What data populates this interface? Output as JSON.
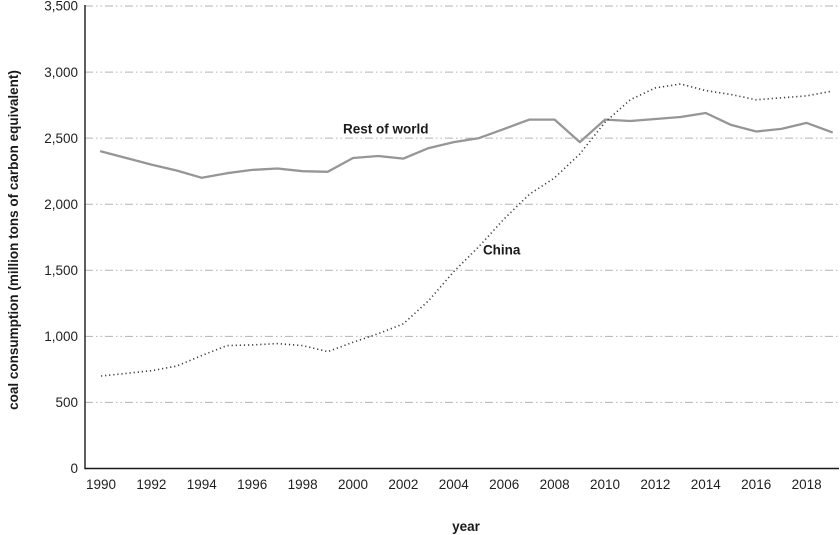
{
  "chart_data": {
    "type": "line",
    "title": "",
    "xlabel": "year",
    "ylabel": "coal consumption (million tons of carbon equivalent)",
    "x": [
      1990,
      1991,
      1992,
      1993,
      1994,
      1995,
      1996,
      1997,
      1998,
      1999,
      2000,
      2001,
      2002,
      2003,
      2004,
      2005,
      2006,
      2007,
      2008,
      2009,
      2010,
      2011,
      2012,
      2013,
      2014,
      2015,
      2016,
      2017,
      2018,
      2019
    ],
    "series": [
      {
        "name": "Rest of world",
        "line_style": "solid",
        "color": "#969696",
        "values": [
          2400,
          2350,
          2300,
          2255,
          2200,
          2235,
          2260,
          2270,
          2250,
          2245,
          2350,
          2365,
          2345,
          2425,
          2470,
          2500,
          2570,
          2640,
          2640,
          2470,
          2640,
          2630,
          2645,
          2660,
          2690,
          2600,
          2550,
          2570,
          2615,
          2545
        ]
      },
      {
        "name": "China",
        "line_style": "dotted",
        "color": "#3c3c3c",
        "values": [
          700,
          720,
          740,
          775,
          855,
          930,
          935,
          945,
          930,
          885,
          955,
          1020,
          1095,
          1270,
          1490,
          1680,
          1890,
          2075,
          2200,
          2380,
          2620,
          2790,
          2880,
          2910,
          2860,
          2830,
          2790,
          2805,
          2820,
          2855
        ]
      }
    ],
    "ylim": [
      0,
      3500
    ],
    "yticks": [
      0,
      500,
      1000,
      1500,
      2000,
      2500,
      3000,
      3500
    ],
    "ytick_labels": [
      "0",
      "500",
      "1,000",
      "1,500",
      "2,000",
      "2,500",
      "3,000",
      "3,500"
    ],
    "xticks": [
      1990,
      1992,
      1994,
      1996,
      1998,
      2000,
      2002,
      2004,
      2006,
      2008,
      2010,
      2012,
      2014,
      2016,
      2018
    ],
    "xtick_labels": [
      "1990",
      "1992",
      "1994",
      "1996",
      "1998",
      "2000",
      "2002",
      "2004",
      "2006",
      "2008",
      "2010",
      "2012",
      "2014",
      "2016",
      "2018"
    ],
    "grid": "horizontal",
    "gridline_color": "#b3b3b3",
    "axis_color": "#1a1a1a",
    "legend_position": "inline-labels",
    "annotations": [
      {
        "text": "Rest of world",
        "year": 2001.3,
        "value": 2570
      },
      {
        "text": "China",
        "year": 2005.9,
        "value": 1652
      }
    ]
  }
}
